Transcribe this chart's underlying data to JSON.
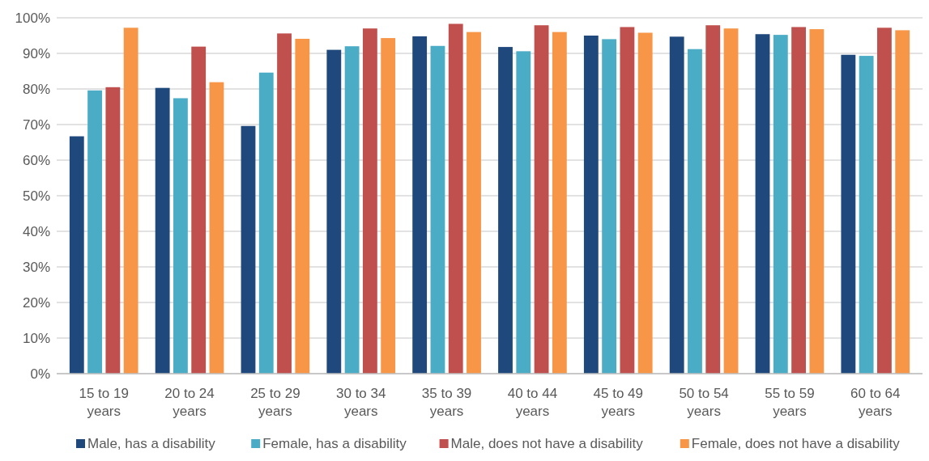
{
  "chart_data": {
    "type": "bar",
    "categories": [
      "15 to 19 years",
      "20 to 24 years",
      "25 to 29 years",
      "30 to 34 years",
      "35 to 39 years",
      "40 to 44 years",
      "45 to 49 years",
      "50 to 54 years",
      "55 to 59 years",
      "60 to 64 years"
    ],
    "series": [
      {
        "name": "Male, has a disability",
        "color": "#1f497d",
        "values": [
          66.7,
          80.3,
          69.6,
          91,
          94.8,
          91.8,
          95,
          94.7,
          95.4,
          89.6
        ]
      },
      {
        "name": "Female, has a disability",
        "color": "#4bacc6",
        "values": [
          79.6,
          77.4,
          84.6,
          92,
          92.1,
          90.6,
          94,
          91.2,
          95.2,
          89.3
        ]
      },
      {
        "name": "Male, does not have a disability",
        "color": "#c0504d",
        "values": [
          80.5,
          91.9,
          95.6,
          97,
          98.3,
          97.9,
          97.4,
          97.9,
          97.4,
          97.2
        ]
      },
      {
        "name": "Female, does not have a disability",
        "color": "#f79646",
        "values": [
          97.2,
          81.9,
          94.1,
          94.3,
          96,
          96,
          95.8,
          97,
          96.8,
          96.5
        ]
      }
    ],
    "ylim": [
      0,
      100
    ],
    "yticks": [
      {
        "value": 0,
        "label": "0%"
      },
      {
        "value": 10,
        "label": "10%"
      },
      {
        "value": 20,
        "label": "20%"
      },
      {
        "value": 30,
        "label": "30%"
      },
      {
        "value": 40,
        "label": "40%"
      },
      {
        "value": 50,
        "label": "50%"
      },
      {
        "value": 60,
        "label": "60%"
      },
      {
        "value": 70,
        "label": "70%"
      },
      {
        "value": 80,
        "label": "80%"
      },
      {
        "value": 90,
        "label": "90%"
      },
      {
        "value": 100,
        "label": "100%"
      }
    ],
    "grid": "y",
    "legend": "bottom"
  }
}
